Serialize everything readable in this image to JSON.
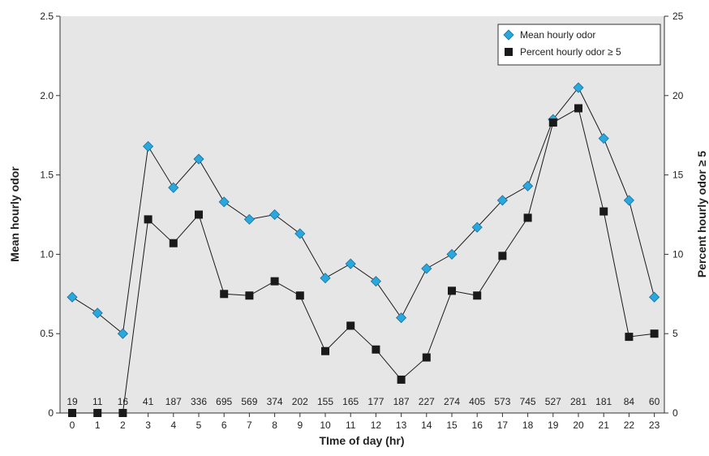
{
  "chart_data": {
    "type": "line",
    "xlabel": "TIme of day (hr)",
    "ylabel": "Mean hourly odor",
    "y2label": "Percent hourly odor ≥ 5",
    "x": [
      0,
      1,
      2,
      3,
      4,
      5,
      6,
      7,
      8,
      9,
      10,
      11,
      12,
      13,
      14,
      15,
      16,
      17,
      18,
      19,
      20,
      21,
      22,
      23
    ],
    "x_ticks": [
      "0",
      "1",
      "2",
      "3",
      "4",
      "5",
      "6",
      "7",
      "8",
      "9",
      "10",
      "11",
      "12",
      "13",
      "14",
      "15",
      "16",
      "17",
      "18",
      "19",
      "20",
      "21",
      "22",
      "23"
    ],
    "ylim": [
      0,
      2.5
    ],
    "y_ticks": [
      "0",
      "0.5",
      "1.0",
      "1.5",
      "2.0",
      "2.5"
    ],
    "y2lim": [
      0,
      25
    ],
    "y2_ticks": [
      "0",
      "5",
      "10",
      "15",
      "20",
      "25"
    ],
    "series": [
      {
        "name": "Mean hourly odor",
        "axis": "left",
        "marker": "diamond",
        "color": "#29a8df",
        "values": [
          0.73,
          0.63,
          0.5,
          1.68,
          1.42,
          1.6,
          1.33,
          1.22,
          1.25,
          1.13,
          0.85,
          0.94,
          0.83,
          0.6,
          0.91,
          1.0,
          1.17,
          1.34,
          1.43,
          1.85,
          2.05,
          1.73,
          1.34,
          0.73
        ]
      },
      {
        "name": "Percent hourly odor ≥ 5",
        "axis": "right",
        "marker": "square",
        "color": "#1a1a1a",
        "values": [
          0,
          0,
          0,
          12.2,
          10.7,
          12.5,
          7.5,
          7.4,
          8.3,
          7.4,
          3.9,
          5.5,
          4.0,
          2.1,
          3.5,
          7.7,
          7.4,
          9.9,
          12.3,
          18.3,
          19.2,
          12.7,
          4.8,
          5.0
        ]
      }
    ],
    "annotations": {
      "counts": [
        "19",
        "11",
        "16",
        "41",
        "187",
        "336",
        "695",
        "569",
        "374",
        "202",
        "155",
        "165",
        "177",
        "187",
        "227",
        "274",
        "405",
        "573",
        "745",
        "527",
        "281",
        "181",
        "84",
        "60"
      ]
    },
    "grid": false,
    "legend_position": "top-right",
    "plot_background": "#e6e6e6"
  }
}
